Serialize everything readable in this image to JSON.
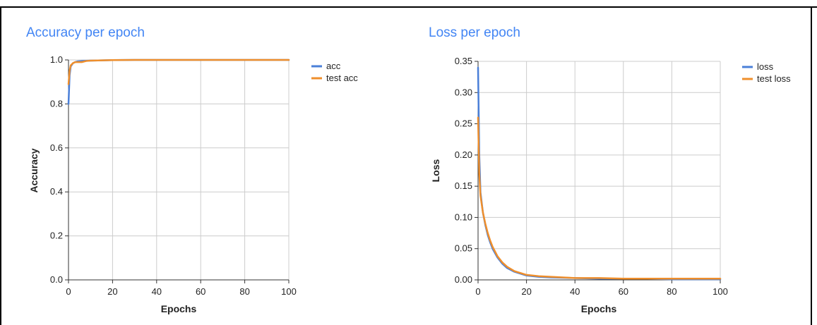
{
  "chart_data": [
    {
      "type": "line",
      "title": "Accuracy per epoch",
      "xlabel": "Epochs",
      "ylabel": "Accuracy",
      "xlim": [
        0,
        100
      ],
      "ylim": [
        0.0,
        1.0
      ],
      "xticks": [
        "0",
        "20",
        "40",
        "60",
        "80",
        "100"
      ],
      "yticks": [
        "0.0",
        "0.2",
        "0.4",
        "0.6",
        "0.8",
        "1.0"
      ],
      "grid": true,
      "legend_position": "top-right",
      "series": [
        {
          "name": "acc",
          "color": "#4a7fd8",
          "x": [
            0,
            0.5,
            1,
            2,
            3,
            4,
            6,
            8,
            10,
            15,
            20,
            30,
            40,
            50,
            60,
            70,
            80,
            90,
            100
          ],
          "y": [
            0.8,
            0.93,
            0.97,
            0.985,
            0.99,
            0.993,
            0.995,
            0.996,
            0.997,
            0.998,
            0.999,
            1.0,
            1.0,
            1.0,
            1.0,
            1.0,
            1.0,
            1.0,
            1.0
          ]
        },
        {
          "name": "test acc",
          "color": "#ef8f2c",
          "x": [
            0,
            0.5,
            1,
            2,
            3,
            4,
            6,
            8,
            10,
            15,
            20,
            30,
            40,
            50,
            60,
            70,
            80,
            90,
            100
          ],
          "y": [
            0.89,
            0.95,
            0.975,
            0.985,
            0.99,
            0.99,
            0.99,
            0.995,
            0.997,
            0.998,
            0.999,
            1.0,
            1.0,
            1.0,
            1.0,
            1.0,
            1.0,
            1.0,
            1.0
          ]
        }
      ]
    },
    {
      "type": "line",
      "title": "Loss per epoch",
      "xlabel": "Epochs",
      "ylabel": "Loss",
      "xlim": [
        0,
        100
      ],
      "ylim": [
        0.0,
        0.35
      ],
      "xticks": [
        "0",
        "20",
        "40",
        "60",
        "80",
        "100"
      ],
      "yticks": [
        "0.00",
        "0.05",
        "0.10",
        "0.15",
        "0.20",
        "0.25",
        "0.30",
        "0.35"
      ],
      "grid": true,
      "legend_position": "top-right",
      "series": [
        {
          "name": "loss",
          "color": "#4a7fd8",
          "x": [
            0,
            0.5,
            1,
            2,
            3,
            4,
            5,
            6,
            8,
            10,
            12,
            15,
            20,
            25,
            30,
            40,
            50,
            60,
            70,
            80,
            90,
            100
          ],
          "y": [
            0.34,
            0.2,
            0.14,
            0.108,
            0.088,
            0.072,
            0.06,
            0.05,
            0.036,
            0.026,
            0.019,
            0.013,
            0.007,
            0.005,
            0.004,
            0.003,
            0.002,
            0.002,
            0.002,
            0.001,
            0.001,
            0.001
          ]
        },
        {
          "name": "test loss",
          "color": "#ef8f2c",
          "x": [
            0,
            0.5,
            1,
            2,
            3,
            4,
            5,
            6,
            8,
            10,
            12,
            15,
            20,
            25,
            30,
            40,
            50,
            60,
            70,
            80,
            90,
            100
          ],
          "y": [
            0.26,
            0.17,
            0.135,
            0.108,
            0.09,
            0.075,
            0.063,
            0.053,
            0.038,
            0.028,
            0.021,
            0.014,
            0.008,
            0.006,
            0.005,
            0.003,
            0.003,
            0.002,
            0.002,
            0.002,
            0.002,
            0.002
          ]
        }
      ]
    }
  ]
}
